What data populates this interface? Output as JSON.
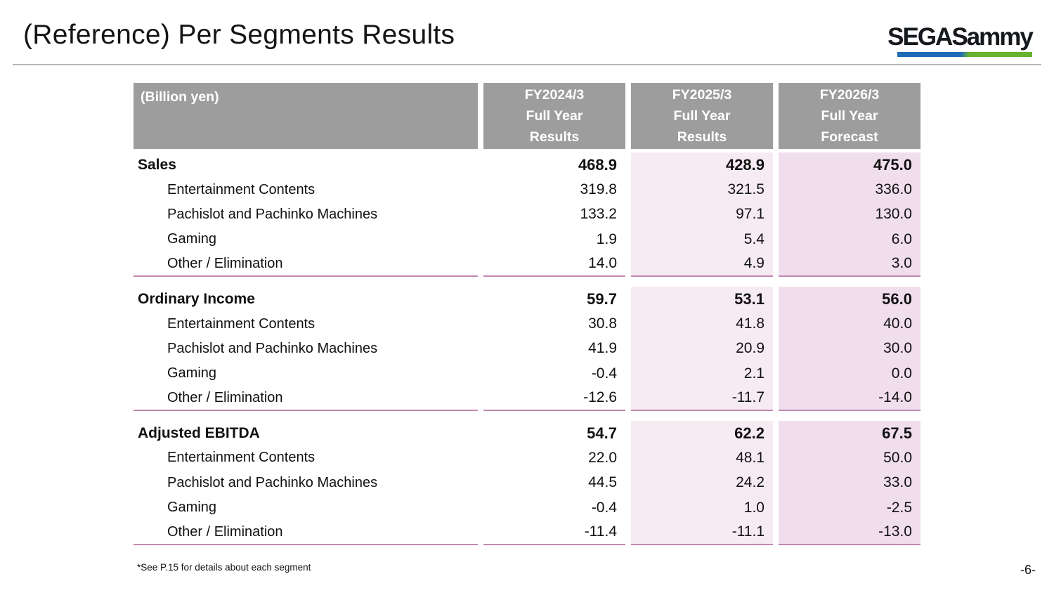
{
  "slide": {
    "title": "(Reference) Per Segments Results",
    "footnote": "*See P.15 for details about each segment",
    "page_number": "-6-"
  },
  "logo": {
    "text": "SEGASammy",
    "underline_blue": "#1e6cb5",
    "underline_green": "#68b231"
  },
  "colors": {
    "header_gray": "#9d9d9d",
    "fy2025_pink": "#f7ebf3",
    "fy2026_pink": "#f1deed",
    "rule_pink": "#c289b2"
  },
  "table": {
    "unit_label": "(Billion yen)",
    "columns": [
      {
        "lines": [
          "FY2024/3",
          "Full Year",
          "Results"
        ]
      },
      {
        "lines": [
          "FY2025/3",
          "Full Year",
          "Results"
        ]
      },
      {
        "lines": [
          "FY2026/3",
          "Full Year",
          "Forecast"
        ]
      }
    ],
    "sections": [
      {
        "rows": [
          {
            "label": "Sales",
            "values": [
              "468.9",
              "428.9",
              "475.0"
            ]
          },
          {
            "label": "Entertainment Contents",
            "values": [
              "319.8",
              "321.5",
              "336.0"
            ]
          },
          {
            "label": "Pachislot and Pachinko Machines",
            "values": [
              "133.2",
              "97.1",
              "130.0"
            ]
          },
          {
            "label": "Gaming",
            "values": [
              "1.9",
              "5.4",
              "6.0"
            ]
          },
          {
            "label": "Other / Elimination",
            "values": [
              "14.0",
              "4.9",
              "3.0"
            ]
          }
        ]
      },
      {
        "rows": [
          {
            "label": "Ordinary Income",
            "values": [
              "59.7",
              "53.1",
              "56.0"
            ]
          },
          {
            "label": "Entertainment Contents",
            "values": [
              "30.8",
              "41.8",
              "40.0"
            ]
          },
          {
            "label": "Pachislot and Pachinko Machines",
            "values": [
              "41.9",
              "20.9",
              "30.0"
            ]
          },
          {
            "label": "Gaming",
            "values": [
              "-0.4",
              "2.1",
              "0.0"
            ]
          },
          {
            "label": "Other / Elimination",
            "values": [
              "-12.6",
              "-11.7",
              "-14.0"
            ]
          }
        ]
      },
      {
        "rows": [
          {
            "label": "Adjusted EBITDA",
            "values": [
              "54.7",
              "62.2",
              "67.5"
            ]
          },
          {
            "label": "Entertainment Contents",
            "values": [
              "22.0",
              "48.1",
              "50.0"
            ]
          },
          {
            "label": "Pachislot and Pachinko Machines",
            "values": [
              "44.5",
              "24.2",
              "33.0"
            ]
          },
          {
            "label": "Gaming",
            "values": [
              "-0.4",
              "1.0",
              "-2.5"
            ]
          },
          {
            "label": "Other / Elimination",
            "values": [
              "-11.4",
              "-11.1",
              "-13.0"
            ]
          }
        ]
      }
    ]
  }
}
